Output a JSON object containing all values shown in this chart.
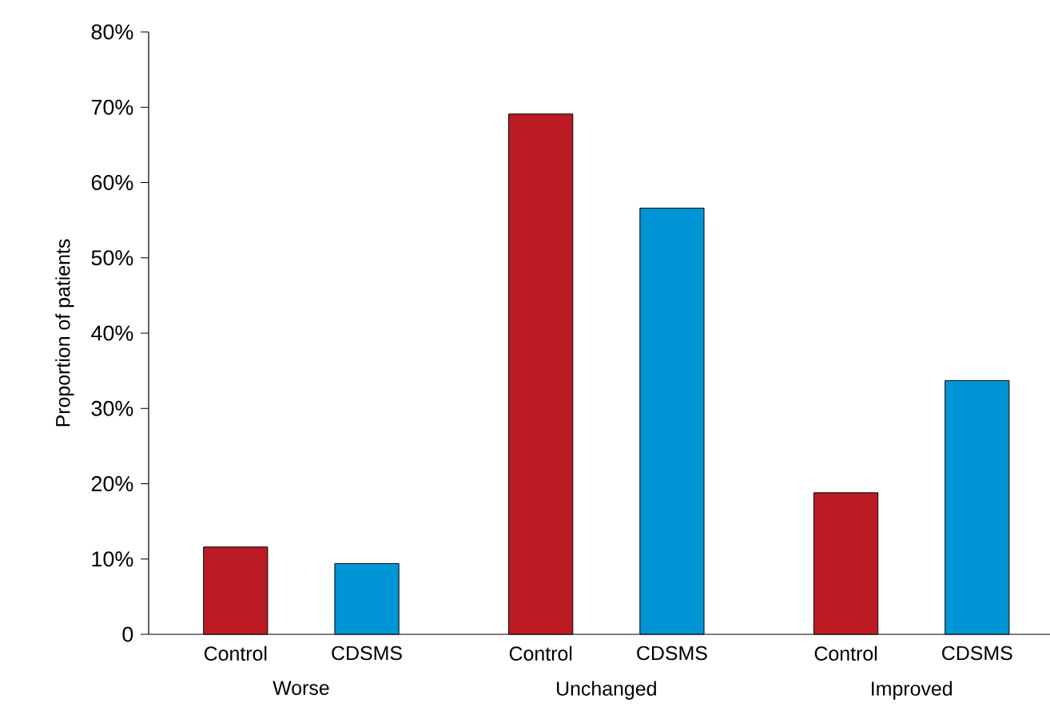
{
  "chart_data": {
    "type": "bar",
    "ylabel": "Proportion of patients",
    "categories": [
      "Worse",
      "Unchanged",
      "Improved"
    ],
    "series": [
      {
        "name": "Control",
        "color": "#bb1c24",
        "values": [
          11.6,
          69.1,
          18.8
        ]
      },
      {
        "name": "CDSMS",
        "color": "#0096d6",
        "values": [
          9.4,
          56.6,
          33.7
        ]
      }
    ],
    "ylim": [
      0,
      80
    ],
    "yticks": [
      {
        "value": 0,
        "label": "0"
      },
      {
        "value": 10,
        "label": "10%"
      },
      {
        "value": 20,
        "label": "20%"
      },
      {
        "value": 30,
        "label": "30%"
      },
      {
        "value": 40,
        "label": "40%"
      },
      {
        "value": 50,
        "label": "50%"
      },
      {
        "value": 60,
        "label": "60%"
      },
      {
        "value": 70,
        "label": "70%"
      },
      {
        "value": 80,
        "label": "80%"
      }
    ]
  }
}
